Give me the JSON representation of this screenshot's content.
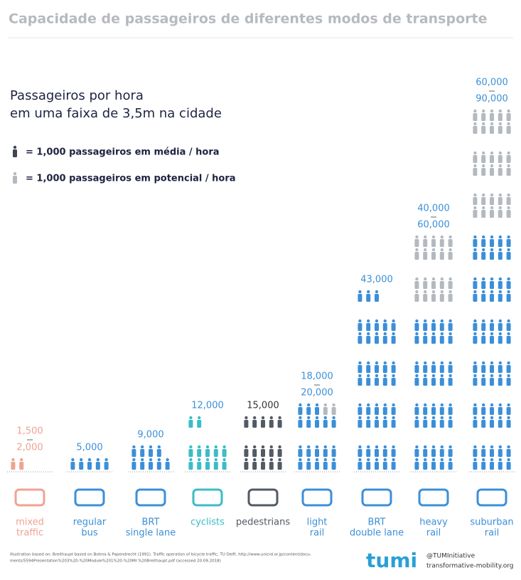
{
  "header": {
    "title": "Capacidade de passageiros de diferentes modos de transporte"
  },
  "subtitle": [
    "Passageiros por hora",
    "em uma faixa de 3,5m na cidade"
  ],
  "legend": [
    {
      "label": "= 1,000 passageiros em média / hora",
      "color": "#3f4650"
    },
    {
      "label": "= 1,000 passageiros em potencial / hora",
      "color": "#b3b9bf"
    }
  ],
  "columns": [
    {
      "name": [
        "mixed",
        "traffic"
      ],
      "value_labels": [
        "1,500",
        "2,000"
      ],
      "average_icons": 2,
      "potential_icons": 0,
      "color": "#f0a293"
    },
    {
      "name": [
        "regular",
        "bus"
      ],
      "value_labels": [
        "5,000"
      ],
      "average_icons": 5,
      "potential_icons": 0,
      "color": "#3b8fd8"
    },
    {
      "name": [
        "BRT",
        "single  lane"
      ],
      "value_labels": [
        "9,000"
      ],
      "average_icons": 9,
      "potential_icons": 0,
      "color": "#3b8fd8"
    },
    {
      "name": [
        "cyclists"
      ],
      "value_labels": [
        "12,000"
      ],
      "average_icons": 12,
      "potential_icons": 0,
      "color": "#3cbcc6"
    },
    {
      "name": [
        "pedestrians"
      ],
      "value_labels": [
        "15,000"
      ],
      "average_icons": 15,
      "potential_icons": 0,
      "color": "#525a64"
    },
    {
      "name": [
        "light",
        "rail"
      ],
      "value_labels": [
        "18,000",
        "20,000"
      ],
      "average_icons": 18,
      "potential_icons": 2,
      "color": "#3b8fd8"
    },
    {
      "name": [
        "BRT",
        "double lane"
      ],
      "value_labels": [
        "43,000"
      ],
      "average_icons": 43,
      "potential_icons": 0,
      "color": "#3b8fd8"
    },
    {
      "name": [
        "heavy",
        "rail"
      ],
      "value_labels": [
        "40,000",
        "60,000"
      ],
      "average_icons": 40,
      "potential_icons": 20,
      "color": "#3b8fd8"
    },
    {
      "name": [
        "suburban",
        "rail"
      ],
      "value_labels": [
        "60,000",
        "90,000"
      ],
      "average_icons": 60,
      "potential_icons": 30,
      "color": "#3b8fd8"
    }
  ],
  "footer": {
    "source": [
      "Illustration based on: Breithaupt based on Botma & Papendrecht (1991). Traffic operation of bicycle traffic, TU Delft. http://www.unicrd.or.jp/content/docu-",
      "ments/5594Presentation%203%20-%20Module%201%20-%20Mr.%20Breithaupt.pdf (accessed 20.09.2018)"
    ],
    "logo": "tumi",
    "handle": "@TUMInitiative",
    "site": "transformative-mobility.org"
  }
}
